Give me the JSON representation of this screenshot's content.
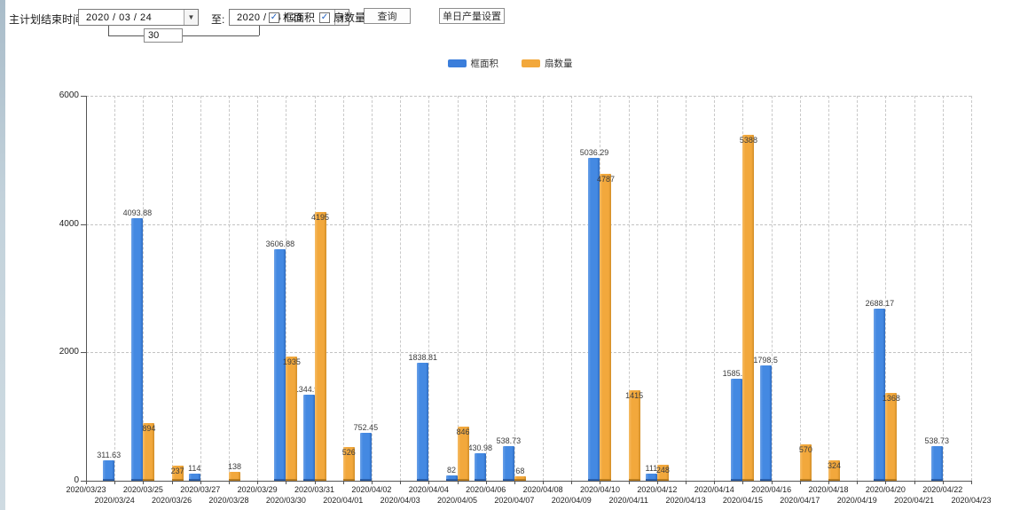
{
  "toolbar": {
    "plan_end_label": "主计划结束时间:",
    "date_from": "2020 / 03 / 24",
    "to_label": "至:",
    "date_to": "2020 / 04 / 23",
    "interval_value": "30",
    "checkboxes": [
      {
        "label": "框面积",
        "checked": true
      },
      {
        "label": "扇数量",
        "checked": true
      }
    ],
    "query_button": "查询",
    "daily_output_button": "单日产量设置"
  },
  "icons": {
    "checkmark": "✓",
    "dropdown_arrow": "▼"
  },
  "legend": {
    "items": [
      {
        "label": "框面积",
        "color": "#3b7edb"
      },
      {
        "label": "扇数量",
        "color": "#f2a83c"
      }
    ]
  },
  "chart_data": {
    "type": "bar",
    "title": "",
    "xlabel": "",
    "ylabel": "",
    "ylim": [
      0,
      6000
    ],
    "yticks": [
      0,
      2000,
      4000,
      6000
    ],
    "grid": true,
    "legend_position": "top",
    "categories": [
      "2020/03/23",
      "2020/03/24",
      "2020/03/25",
      "2020/03/26",
      "2020/03/27",
      "2020/03/28",
      "2020/03/29",
      "2020/03/30",
      "2020/03/31",
      "2020/04/01",
      "2020/04/02",
      "2020/04/03",
      "2020/04/04",
      "2020/04/05",
      "2020/04/06",
      "2020/04/07",
      "2020/04/08",
      "2020/04/09",
      "2020/04/10",
      "2020/04/11",
      "2020/04/12",
      "2020/04/13",
      "2020/04/14",
      "2020/04/15",
      "2020/04/16",
      "2020/04/17",
      "2020/04/18",
      "2020/04/19",
      "2020/04/20",
      "2020/04/21",
      "2020/04/22",
      "2020/04/23"
    ],
    "series": [
      {
        "name": "框面积",
        "key": "frame-area",
        "color": "#4489e2",
        "values": [
          null,
          311.63,
          4093.88,
          null,
          114,
          null,
          null,
          3606.88,
          1344.95,
          null,
          752.45,
          null,
          1838.81,
          82,
          430.98,
          538.73,
          null,
          null,
          5036.29,
          null,
          111,
          null,
          null,
          1585.96,
          1798.5,
          null,
          null,
          null,
          2688.17,
          null,
          538.73,
          null
        ]
      },
      {
        "name": "扇数量",
        "key": "fan-count",
        "color": "#f2a83c",
        "values": [
          null,
          null,
          894,
          237,
          null,
          138,
          null,
          1935,
          4195,
          526,
          null,
          null,
          null,
          846,
          null,
          68,
          null,
          null,
          4787,
          1415,
          248,
          null,
          null,
          5388,
          null,
          570,
          324,
          null,
          1368,
          null,
          null,
          null
        ]
      }
    ]
  }
}
